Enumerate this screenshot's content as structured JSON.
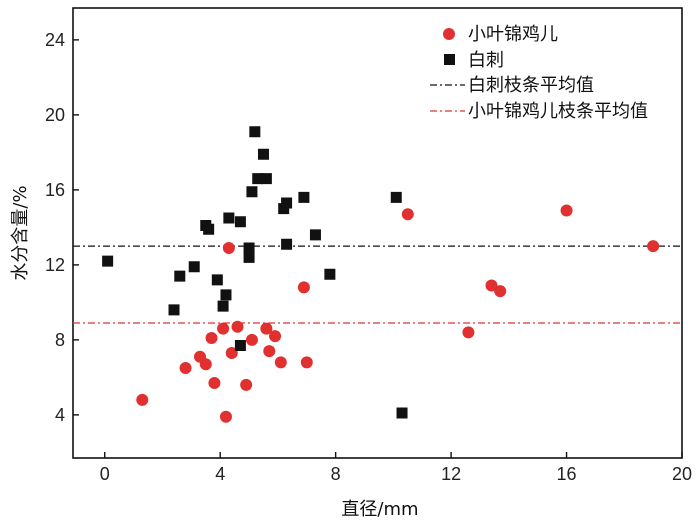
{
  "chart_data": {
    "type": "scatter",
    "xlabel": "直径/mm",
    "ylabel": "水分含量/%",
    "xlim": [
      -1.1,
      20
    ],
    "ylim": [
      1.7,
      25.7
    ],
    "xticks": [
      0,
      4,
      8,
      12,
      16,
      20
    ],
    "yticks": [
      4,
      8,
      12,
      16,
      20,
      24
    ],
    "legend_position": "top-right",
    "series": [
      {
        "name": "小叶锦鸡儿",
        "marker": "circle",
        "color": "#e03030",
        "points": [
          [
            1.3,
            4.8
          ],
          [
            2.8,
            6.5
          ],
          [
            3.3,
            7.1
          ],
          [
            3.5,
            6.7
          ],
          [
            3.7,
            8.1
          ],
          [
            3.8,
            5.7
          ],
          [
            4.1,
            8.6
          ],
          [
            4.2,
            3.9
          ],
          [
            4.3,
            12.9
          ],
          [
            4.4,
            7.3
          ],
          [
            4.6,
            8.7
          ],
          [
            4.9,
            5.6
          ],
          [
            5.1,
            8.0
          ],
          [
            5.6,
            8.6
          ],
          [
            5.7,
            7.4
          ],
          [
            5.9,
            8.2
          ],
          [
            6.1,
            6.8
          ],
          [
            6.9,
            10.8
          ],
          [
            7.0,
            6.8
          ],
          [
            10.5,
            14.7
          ],
          [
            12.6,
            8.4
          ],
          [
            13.4,
            10.9
          ],
          [
            13.7,
            10.6
          ],
          [
            16.0,
            14.9
          ],
          [
            19.0,
            13.0
          ]
        ]
      },
      {
        "name": "白刺",
        "marker": "square",
        "color": "#111111",
        "points": [
          [
            0.1,
            12.2
          ],
          [
            2.4,
            9.6
          ],
          [
            2.6,
            11.4
          ],
          [
            3.1,
            11.9
          ],
          [
            3.5,
            14.1
          ],
          [
            3.6,
            13.9
          ],
          [
            3.9,
            11.2
          ],
          [
            4.1,
            9.8
          ],
          [
            4.2,
            10.4
          ],
          [
            4.3,
            14.5
          ],
          [
            4.7,
            7.7
          ],
          [
            4.7,
            14.3
          ],
          [
            5.0,
            12.4
          ],
          [
            5.0,
            12.9
          ],
          [
            5.1,
            15.9
          ],
          [
            5.2,
            19.1
          ],
          [
            5.3,
            16.6
          ],
          [
            5.5,
            17.9
          ],
          [
            5.6,
            16.6
          ],
          [
            6.2,
            15.0
          ],
          [
            6.3,
            15.3
          ],
          [
            6.3,
            13.1
          ],
          [
            6.9,
            15.6
          ],
          [
            7.3,
            13.6
          ],
          [
            7.8,
            11.5
          ],
          [
            10.1,
            15.6
          ],
          [
            10.3,
            4.1
          ]
        ]
      }
    ],
    "reference_lines": [
      {
        "name": "白刺枝条平均值",
        "y": 13.0,
        "color": "#111111",
        "style": "dash-dot"
      },
      {
        "name": "小叶锦鸡儿枝条平均值",
        "y": 8.9,
        "color": "#e03030",
        "style": "dash-dot"
      }
    ]
  }
}
